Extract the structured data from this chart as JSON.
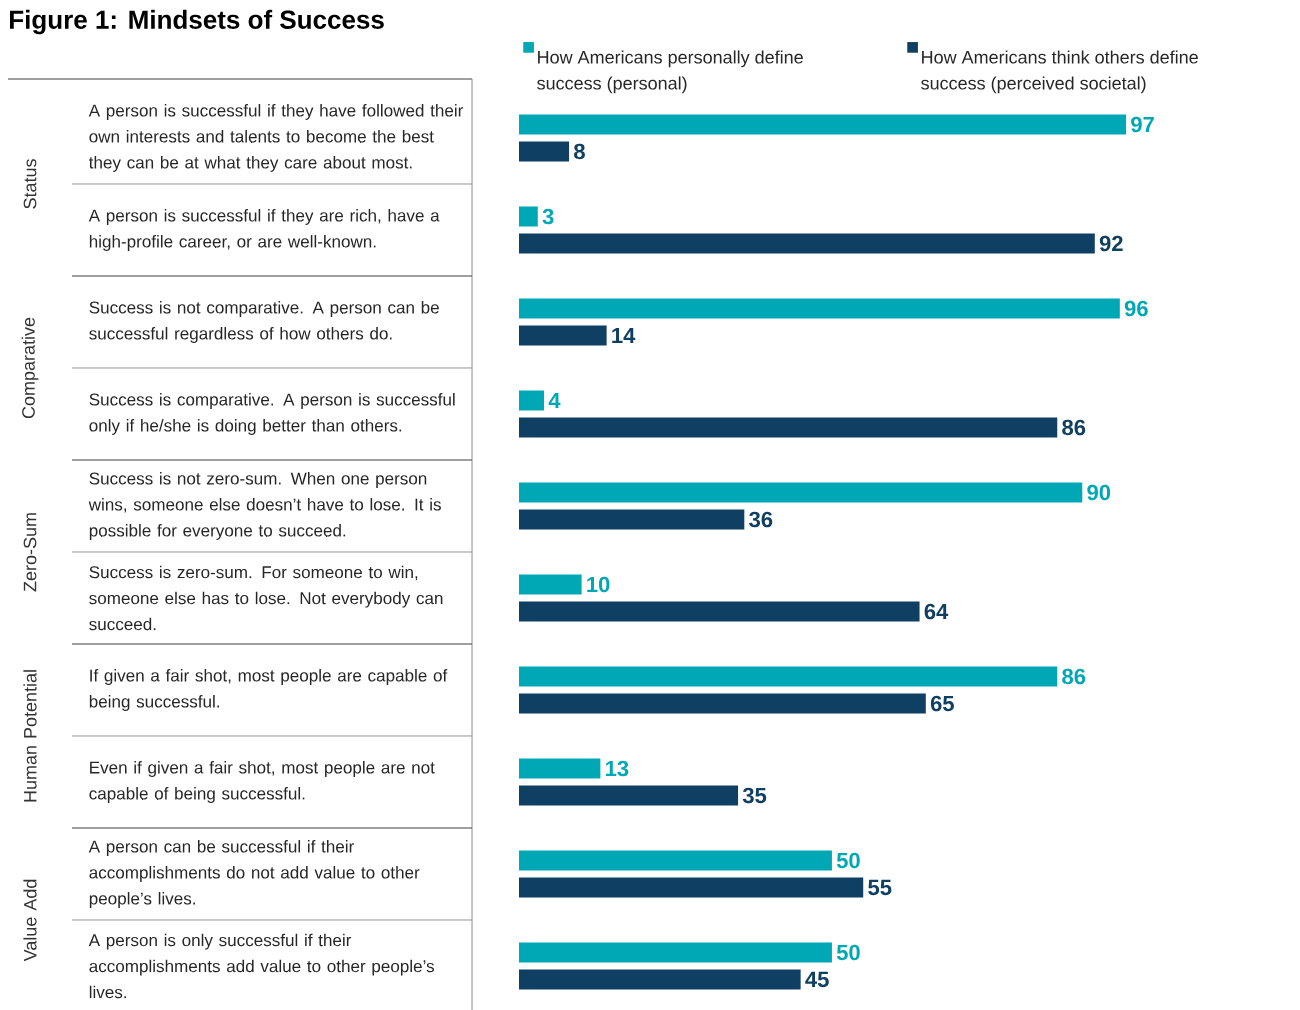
{
  "chart_data": {
    "type": "bar",
    "orientation": "horizontal",
    "title": "Figure 1: Mindsets of Success",
    "categories": [
      "A person is successful if they have followed their own interests and talents to become the best they can be at what they care about most.",
      "A person is successful if they are rich, have a high-profile career, or are well-known.",
      "Success is not comparative. A person can be successful regardless of how others do.",
      "Success is comparative. A person is successful only if he/she is doing better than others.",
      "Success is not zero-sum. When one person wins, someone else doesn’t have to lose. It is possible for everyone to succeed.",
      "Success is zero-sum. For someone to win, someone else has to lose. Not everybody can succeed.",
      "If given a fair shot, most people are capable of being successful.",
      "Even if given a fair shot, most people are not capable of being successful.",
      "A person can be successful if their accomplishments do not add value to other people’s lives.",
      "A person is only successful if their accomplishments add value to other people’s lives."
    ],
    "series": [
      {
        "name": "How Americans personally define success (personal)",
        "color": "#00a8b5",
        "values": [
          97,
          3,
          96,
          4,
          90,
          10,
          86,
          13,
          50,
          50
        ]
      },
      {
        "name": "How Americans think others define success (perceived societal)",
        "color": "#0f4063",
        "values": [
          8,
          92,
          14,
          86,
          36,
          64,
          65,
          35,
          55,
          45
        ]
      }
    ],
    "annotations": [
      "Status",
      "Comparative",
      "Zero-Sum",
      "Human Potential",
      "Value Add"
    ],
    "data_labels": true,
    "legend": "top"
  }
}
